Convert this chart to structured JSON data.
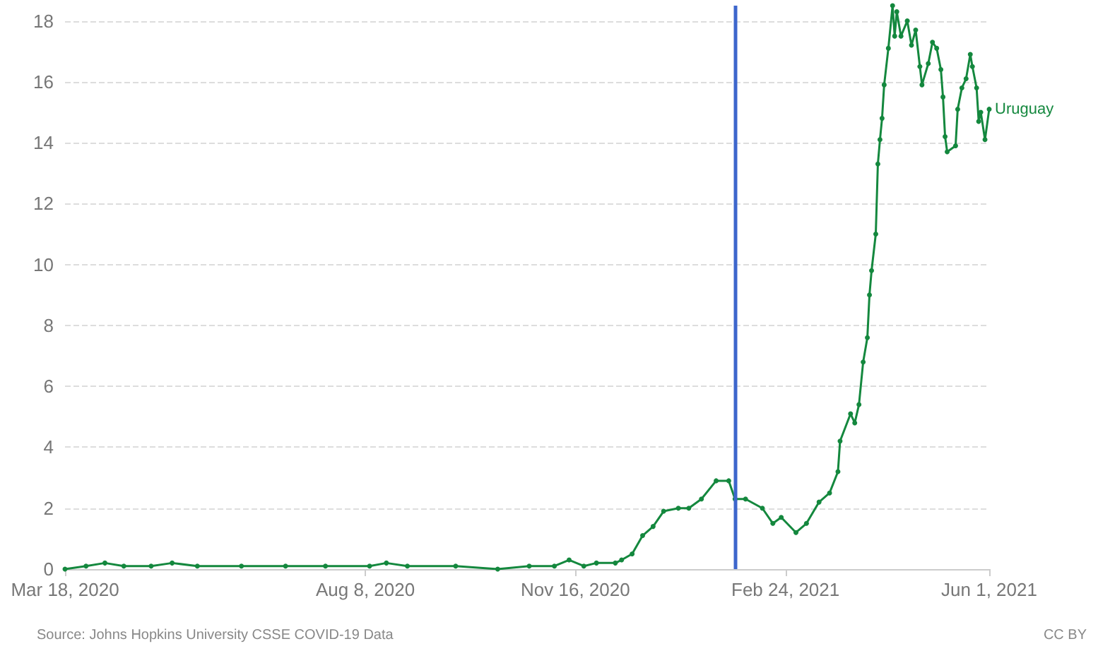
{
  "chart_data": {
    "type": "line",
    "xlim": [
      "2020-03-18",
      "2021-06-01"
    ],
    "xticks": [
      {
        "value": "2020-03-18",
        "label": "Mar 18, 2020"
      },
      {
        "value": "2020-08-08",
        "label": "Aug 8, 2020"
      },
      {
        "value": "2020-11-16",
        "label": "Nov 16, 2020"
      },
      {
        "value": "2021-02-24",
        "label": "Feb 24, 2021"
      },
      {
        "value": "2021-06-01",
        "label": "Jun 1, 2021"
      }
    ],
    "ylim": [
      0,
      18.5
    ],
    "yticks": [
      0,
      2,
      4,
      6,
      8,
      10,
      12,
      14,
      16,
      18
    ],
    "grid": "y",
    "marker": "circle",
    "line_style": "solid",
    "legend": false,
    "x": [
      "2020-03-18",
      "2020-03-28",
      "2020-04-06",
      "2020-04-15",
      "2020-04-28",
      "2020-05-08",
      "2020-05-20",
      "2020-06-10",
      "2020-07-01",
      "2020-07-20",
      "2020-08-10",
      "2020-08-18",
      "2020-08-28",
      "2020-09-20",
      "2020-10-10",
      "2020-10-25",
      "2020-11-06",
      "2020-11-13",
      "2020-11-20",
      "2020-11-26",
      "2020-12-05",
      "2020-12-08",
      "2020-12-13",
      "2020-12-18",
      "2020-12-23",
      "2020-12-28",
      "2021-01-04",
      "2021-01-09",
      "2021-01-15",
      "2021-01-22",
      "2021-01-28",
      "2021-01-31",
      "2021-02-05",
      "2021-02-13",
      "2021-02-18",
      "2021-02-22",
      "2021-03-01",
      "2021-03-06",
      "2021-03-12",
      "2021-03-17",
      "2021-03-21",
      "2021-03-22",
      "2021-03-27",
      "2021-03-29",
      "2021-03-31",
      "2021-04-02",
      "2021-04-04",
      "2021-04-05",
      "2021-04-06",
      "2021-04-08",
      "2021-04-09",
      "2021-04-10",
      "2021-04-11",
      "2021-04-12",
      "2021-04-14",
      "2021-04-16",
      "2021-04-17",
      "2021-04-18",
      "2021-04-20",
      "2021-04-23",
      "2021-04-25",
      "2021-04-27",
      "2021-04-29",
      "2021-04-30",
      "2021-05-03",
      "2021-05-05",
      "2021-05-07",
      "2021-05-09",
      "2021-05-10",
      "2021-05-11",
      "2021-05-12",
      "2021-05-16",
      "2021-05-17",
      "2021-05-19",
      "2021-05-21",
      "2021-05-23",
      "2021-05-24",
      "2021-05-26",
      "2021-05-27",
      "2021-05-28",
      "2021-05-30",
      "2021-06-01"
    ],
    "series": [
      {
        "name": "Uruguay",
        "color": "#14883e",
        "values": [
          0.0,
          0.1,
          0.2,
          0.1,
          0.1,
          0.2,
          0.1,
          0.1,
          0.1,
          0.1,
          0.1,
          0.2,
          0.1,
          0.1,
          0.0,
          0.1,
          0.1,
          0.3,
          0.1,
          0.2,
          0.2,
          0.3,
          0.5,
          1.1,
          1.4,
          1.9,
          2.0,
          2.0,
          2.3,
          2.9,
          2.9,
          2.3,
          2.3,
          2.0,
          1.5,
          1.7,
          1.2,
          1.5,
          2.2,
          2.5,
          3.2,
          4.2,
          5.1,
          4.8,
          5.4,
          6.8,
          7.6,
          9.0,
          9.8,
          11.0,
          13.3,
          14.1,
          14.8,
          15.9,
          17.1,
          18.5,
          17.5,
          18.3,
          17.5,
          18.0,
          17.2,
          17.7,
          16.5,
          15.9,
          16.6,
          17.3,
          17.1,
          16.4,
          15.5,
          14.2,
          13.7,
          13.9,
          15.1,
          15.8,
          16.1,
          16.9,
          16.5,
          15.8,
          14.7,
          15.0,
          14.1,
          15.1
        ]
      }
    ],
    "ref_lines": [
      {
        "axis": "x",
        "value": "2021-01-31",
        "color": "#3d66cc"
      }
    ],
    "annotations": [
      "Source: Johns Hopkins University CSSE COVID-19 Data",
      "CC BY"
    ]
  }
}
